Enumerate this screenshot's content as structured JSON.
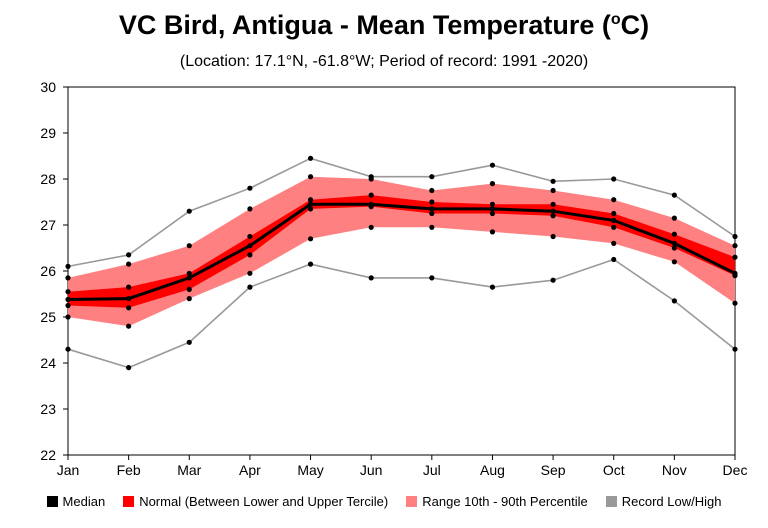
{
  "title": {
    "main": "VC Bird, Antigua - Mean Temperature (",
    "sup": "o",
    "suffix": "C)"
  },
  "subtitle": "(Location: 17.1°N, -61.8°W; Period of record: 1991 -2020)",
  "colors": {
    "median": "#000000",
    "tercile": "#ff0000",
    "percentile": "#ff8080",
    "record": "#999999"
  },
  "legend": [
    {
      "label": "Median",
      "color": "#000000"
    },
    {
      "label": "Normal (Between Lower and Upper Tercile)",
      "color": "#ff0000"
    },
    {
      "label": "Range 10th - 90th Percentile",
      "color": "#ff8080"
    },
    {
      "label": "Record Low/High",
      "color": "#999999"
    }
  ],
  "chart_data": {
    "type": "line",
    "title": "VC Bird, Antigua - Mean Temperature (oC)",
    "subtitle": "(Location: 17.1°N, -61.8°W; Period of record: 1991 -2020)",
    "categories": [
      "Jan",
      "Feb",
      "Mar",
      "Apr",
      "May",
      "Jun",
      "Jul",
      "Aug",
      "Sep",
      "Oct",
      "Nov",
      "Dec"
    ],
    "ylim": [
      22,
      30
    ],
    "yticks": [
      22,
      23,
      24,
      25,
      26,
      27,
      28,
      29,
      30
    ],
    "grid": false,
    "legend_position": "bottom",
    "series": [
      {
        "name": "Record Low/High",
        "role": "record_high",
        "values": [
          26.1,
          26.35,
          27.3,
          27.8,
          28.45,
          28.05,
          28.05,
          28.3,
          27.95,
          28.0,
          27.65,
          26.75
        ]
      },
      {
        "name": "Range 10th - 90th Percentile",
        "role": "p90",
        "values": [
          25.85,
          26.15,
          26.55,
          27.35,
          28.05,
          28.0,
          27.75,
          27.9,
          27.75,
          27.55,
          27.15,
          26.55
        ]
      },
      {
        "name": "Normal (Between Lower and Upper Tercile)",
        "role": "upper_tercile",
        "values": [
          25.55,
          25.65,
          25.95,
          26.75,
          27.55,
          27.65,
          27.5,
          27.45,
          27.45,
          27.25,
          26.8,
          26.3
        ]
      },
      {
        "name": "Median",
        "role": "median",
        "values": [
          25.38,
          25.4,
          25.85,
          26.55,
          27.45,
          27.45,
          27.35,
          27.35,
          27.3,
          27.1,
          26.6,
          25.95
        ]
      },
      {
        "name": "Normal (Between Lower and Upper Tercile)",
        "role": "lower_tercile",
        "values": [
          25.25,
          25.2,
          25.6,
          26.35,
          27.35,
          27.4,
          27.25,
          27.25,
          27.2,
          26.95,
          26.5,
          25.9
        ]
      },
      {
        "name": "Range 10th - 90th Percentile",
        "role": "p10",
        "values": [
          25.0,
          24.8,
          25.4,
          25.95,
          26.7,
          26.95,
          26.95,
          26.85,
          26.75,
          26.6,
          26.2,
          25.3
        ]
      },
      {
        "name": "Record Low/High",
        "role": "record_low",
        "values": [
          24.3,
          23.9,
          24.45,
          25.65,
          26.15,
          25.85,
          25.85,
          25.65,
          25.8,
          26.25,
          25.35,
          24.3
        ]
      }
    ]
  }
}
